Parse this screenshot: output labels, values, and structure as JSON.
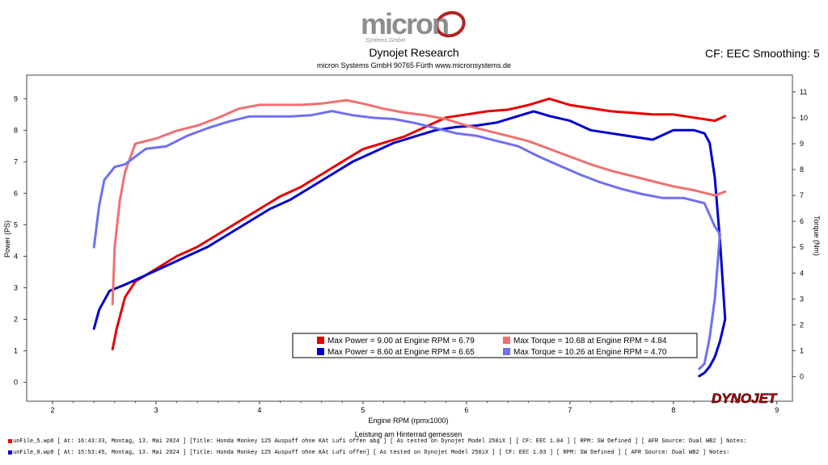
{
  "header": {
    "logo_text": "micron",
    "logo_subtext": "Systems GmbH",
    "title": "Dynojet Research",
    "subtitle": "micron Systems GmbH  90765 Fürth www.micronsystems.de",
    "cf_label": "CF: EEC Smoothing: 5"
  },
  "brand_mark": "DYNOJET",
  "colors": {
    "power_1": "#e60000",
    "power_2": "#0000cc",
    "torque_1": "#f07070",
    "torque_2": "#7070f0",
    "logo_gray": "#8c8c8c",
    "logo_red": "#b22222",
    "plot_border": "#444444"
  },
  "chart_data": {
    "type": "line",
    "xlabel": "Engine RPM (rpmx1000)",
    "xlabel_note": "Leistung am Hinterrad gemessen",
    "ylabel_left": "Power (PS)",
    "ylabel_right": "Torque (Nm)",
    "xlim": [
      1.75,
      9.15
    ],
    "ylim_left": [
      -0.6,
      9.75
    ],
    "ylim_right": [
      -0.95,
      11.65
    ],
    "x_ticks": [
      "2",
      "3",
      "4",
      "5",
      "6",
      "7",
      "8",
      "9"
    ],
    "y_ticks_left": [
      "0",
      "1",
      "2",
      "3",
      "4",
      "5",
      "6",
      "7",
      "8",
      "9"
    ],
    "y_ticks_right": [
      "0",
      "1",
      "2",
      "3",
      "4",
      "5",
      "6",
      "7",
      "8",
      "9",
      "10",
      "11"
    ],
    "legend": [
      {
        "text": "Max Power = 9.00 at Engine RPM = 6.79",
        "color": "#e60000"
      },
      {
        "text": "Max Power = 8.60 at Engine RPM = 6.65",
        "color": "#0000cc"
      },
      {
        "text": "Max Torque = 10.68 at Engine RPM = 4.84",
        "color": "#f07070"
      },
      {
        "text": "Max Torque = 10.26 at Engine RPM = 4.70",
        "color": "#7070f0"
      }
    ],
    "series": [
      {
        "axis": "left",
        "color": "#e60000",
        "x": [
          2.58,
          2.62,
          2.7,
          2.8,
          3.0,
          3.2,
          3.4,
          3.6,
          3.8,
          4.0,
          4.2,
          4.4,
          4.6,
          4.8,
          5.0,
          5.2,
          5.4,
          5.6,
          5.8,
          6.0,
          6.2,
          6.4,
          6.6,
          6.8,
          7.0,
          7.2,
          7.4,
          7.6,
          7.8,
          8.0,
          8.2,
          8.4,
          8.5
        ],
        "y": [
          1.05,
          1.7,
          2.7,
          3.2,
          3.6,
          4.0,
          4.3,
          4.7,
          5.1,
          5.5,
          5.9,
          6.2,
          6.6,
          7.0,
          7.4,
          7.6,
          7.8,
          8.1,
          8.4,
          8.5,
          8.6,
          8.65,
          8.8,
          9.0,
          8.8,
          8.7,
          8.6,
          8.55,
          8.5,
          8.5,
          8.4,
          8.3,
          8.45
        ]
      },
      {
        "axis": "left",
        "color": "#0000cc",
        "x": [
          2.4,
          2.45,
          2.55,
          2.7,
          2.9,
          3.1,
          3.3,
          3.5,
          3.7,
          3.9,
          4.1,
          4.3,
          4.5,
          4.7,
          4.9,
          5.1,
          5.3,
          5.5,
          5.7,
          5.9,
          6.1,
          6.3,
          6.5,
          6.65,
          6.8,
          7.0,
          7.2,
          7.4,
          7.6,
          7.8,
          8.0,
          8.2,
          8.3,
          8.35,
          8.4,
          8.45,
          8.5,
          8.45,
          8.4,
          8.35,
          8.3,
          8.25
        ],
        "y": [
          1.7,
          2.3,
          2.9,
          3.1,
          3.4,
          3.7,
          4.0,
          4.3,
          4.7,
          5.1,
          5.5,
          5.8,
          6.2,
          6.6,
          7.0,
          7.3,
          7.6,
          7.8,
          8.0,
          8.1,
          8.15,
          8.25,
          8.45,
          8.6,
          8.45,
          8.3,
          8.0,
          7.9,
          7.8,
          7.7,
          8.0,
          8.0,
          7.9,
          7.6,
          6.5,
          4.5,
          2.0,
          1.3,
          0.8,
          0.5,
          0.3,
          0.2
        ]
      },
      {
        "axis": "right",
        "color": "#f07070",
        "x": [
          2.58,
          2.6,
          2.65,
          2.7,
          2.8,
          3.0,
          3.2,
          3.4,
          3.6,
          3.8,
          4.0,
          4.2,
          4.4,
          4.6,
          4.84,
          5.0,
          5.2,
          5.4,
          5.6,
          5.8,
          6.0,
          6.2,
          6.4,
          6.6,
          6.8,
          7.0,
          7.2,
          7.4,
          7.6,
          7.8,
          8.0,
          8.2,
          8.4,
          8.5
        ],
        "y": [
          2.8,
          5.0,
          6.8,
          7.9,
          9.0,
          9.2,
          9.5,
          9.7,
          10.0,
          10.35,
          10.5,
          10.5,
          10.5,
          10.55,
          10.68,
          10.55,
          10.35,
          10.2,
          10.1,
          9.95,
          9.7,
          9.5,
          9.3,
          9.1,
          8.8,
          8.5,
          8.2,
          7.95,
          7.75,
          7.55,
          7.35,
          7.2,
          7.0,
          7.15
        ]
      },
      {
        "axis": "right",
        "color": "#7070f0",
        "x": [
          2.4,
          2.45,
          2.5,
          2.6,
          2.7,
          2.9,
          3.1,
          3.3,
          3.5,
          3.7,
          3.9,
          4.1,
          4.3,
          4.5,
          4.7,
          4.9,
          5.1,
          5.3,
          5.5,
          5.7,
          5.9,
          6.1,
          6.3,
          6.5,
          6.7,
          6.9,
          7.1,
          7.3,
          7.5,
          7.7,
          7.9,
          8.1,
          8.3,
          8.4,
          8.45,
          8.4,
          8.35,
          8.3,
          8.25
        ],
        "y": [
          5.0,
          6.6,
          7.6,
          8.1,
          8.2,
          8.8,
          8.9,
          9.3,
          9.6,
          9.85,
          10.05,
          10.05,
          10.05,
          10.1,
          10.26,
          10.1,
          10.0,
          9.95,
          9.8,
          9.6,
          9.4,
          9.3,
          9.1,
          8.9,
          8.5,
          8.15,
          7.8,
          7.5,
          7.25,
          7.05,
          6.9,
          6.9,
          6.7,
          5.8,
          5.5,
          3.0,
          1.5,
          0.5,
          0.3
        ]
      }
    ]
  },
  "footer": {
    "run1_text": "unFile_5.wp8 [ At: 16:43:33, Montag, 13. Mai 2024 ] [Title: Honda Monkey 125 Auspuff ohne KAt Lufi offen abg ]  [ As tested on Dynojet Model 250iX ] [ CF: EEC 1.04 ] [ RPM: SW Defined ] [ AFR Source: Dual WB2 ] Notes:",
    "run2_text": "unFile_0.wp8 [ At: 15:53:45, Montag, 13. Mai 2024 ] [Title: Honda Monkey 125 Auspuff ohne KAt Lufi offen]  [ As tested on Dynojet Model 250iX ] [ CF: EEC 1.03 ] [ RPM: SW Defined ] [ AFR Source: Dual WB2 ] Notes:",
    "run1_color": "#e60000",
    "run2_color": "#0000cc"
  }
}
